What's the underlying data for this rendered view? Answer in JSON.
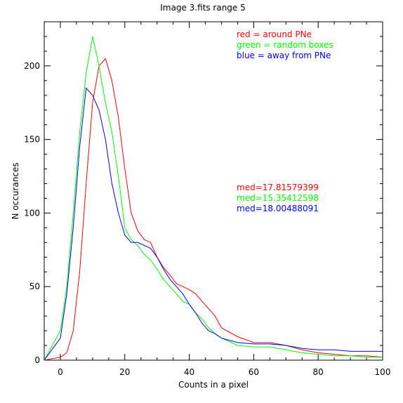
{
  "chart_data": {
    "type": "line",
    "title": "Image 3.fits   range 5",
    "xlabel": "Counts in a pixel",
    "ylabel": "N occurances",
    "xlim": [
      -5,
      100
    ],
    "ylim": [
      0,
      230
    ],
    "xticks": [
      0,
      20,
      40,
      60,
      80,
      100
    ],
    "yticks": [
      0,
      50,
      100,
      150,
      200
    ],
    "grid": false,
    "legend_placement": "top-right",
    "legend": [
      {
        "text": "red = around PNe",
        "color": "#ff0000"
      },
      {
        "text": "green = random boxes",
        "color": "#00ff00"
      },
      {
        "text": "blue = away from PNe",
        "color": "#0000ff"
      }
    ],
    "annotations": [
      {
        "text": "med=17.81579399",
        "color": "#ff0000"
      },
      {
        "text": "med=15.35412598",
        "color": "#00ff00"
      },
      {
        "text": "med=18.00488091",
        "color": "#0000ff"
      }
    ],
    "series": [
      {
        "color": "#ff0000",
        "x": [
          -5,
          0,
          2,
          4,
          6,
          8,
          10,
          12,
          14,
          16,
          18,
          20,
          22,
          24,
          26,
          28,
          30,
          32,
          34,
          36,
          38,
          40,
          42,
          44,
          46,
          48,
          50,
          55,
          60,
          65,
          70,
          75,
          80,
          85,
          90,
          95,
          100
        ],
        "y": [
          0,
          2,
          5,
          20,
          60,
          120,
          175,
          200,
          205,
          190,
          165,
          130,
          100,
          88,
          82,
          80,
          70,
          63,
          58,
          52,
          50,
          48,
          45,
          40,
          35,
          30,
          22,
          16,
          12,
          12,
          10,
          7,
          5,
          4,
          3,
          3,
          2
        ]
      },
      {
        "color": "#00ff00",
        "x": [
          -5,
          0,
          2,
          4,
          6,
          8,
          10,
          12,
          14,
          16,
          18,
          20,
          22,
          24,
          26,
          28,
          30,
          32,
          34,
          36,
          38,
          40,
          42,
          44,
          46,
          48,
          50,
          55,
          60,
          65,
          70,
          75,
          80,
          85,
          90,
          95,
          100
        ],
        "y": [
          0,
          20,
          50,
          100,
          155,
          195,
          220,
          200,
          175,
          155,
          125,
          90,
          82,
          78,
          72,
          68,
          62,
          55,
          50,
          45,
          40,
          38,
          32,
          28,
          22,
          18,
          15,
          10,
          9,
          9,
          7,
          5,
          4,
          3,
          3,
          2,
          2
        ]
      },
      {
        "color": "#0000ff",
        "x": [
          -5,
          0,
          2,
          4,
          6,
          8,
          10,
          12,
          14,
          16,
          18,
          20,
          22,
          24,
          26,
          28,
          30,
          32,
          34,
          36,
          38,
          40,
          42,
          44,
          46,
          48,
          50,
          55,
          60,
          65,
          70,
          75,
          80,
          85,
          90,
          95,
          100
        ],
        "y": [
          0,
          15,
          45,
          90,
          145,
          185,
          180,
          170,
          150,
          120,
          100,
          85,
          80,
          80,
          78,
          76,
          70,
          62,
          55,
          50,
          45,
          38,
          32,
          25,
          20,
          18,
          15,
          12,
          11,
          11,
          10,
          8,
          7,
          7,
          6,
          6,
          6
        ]
      }
    ]
  }
}
